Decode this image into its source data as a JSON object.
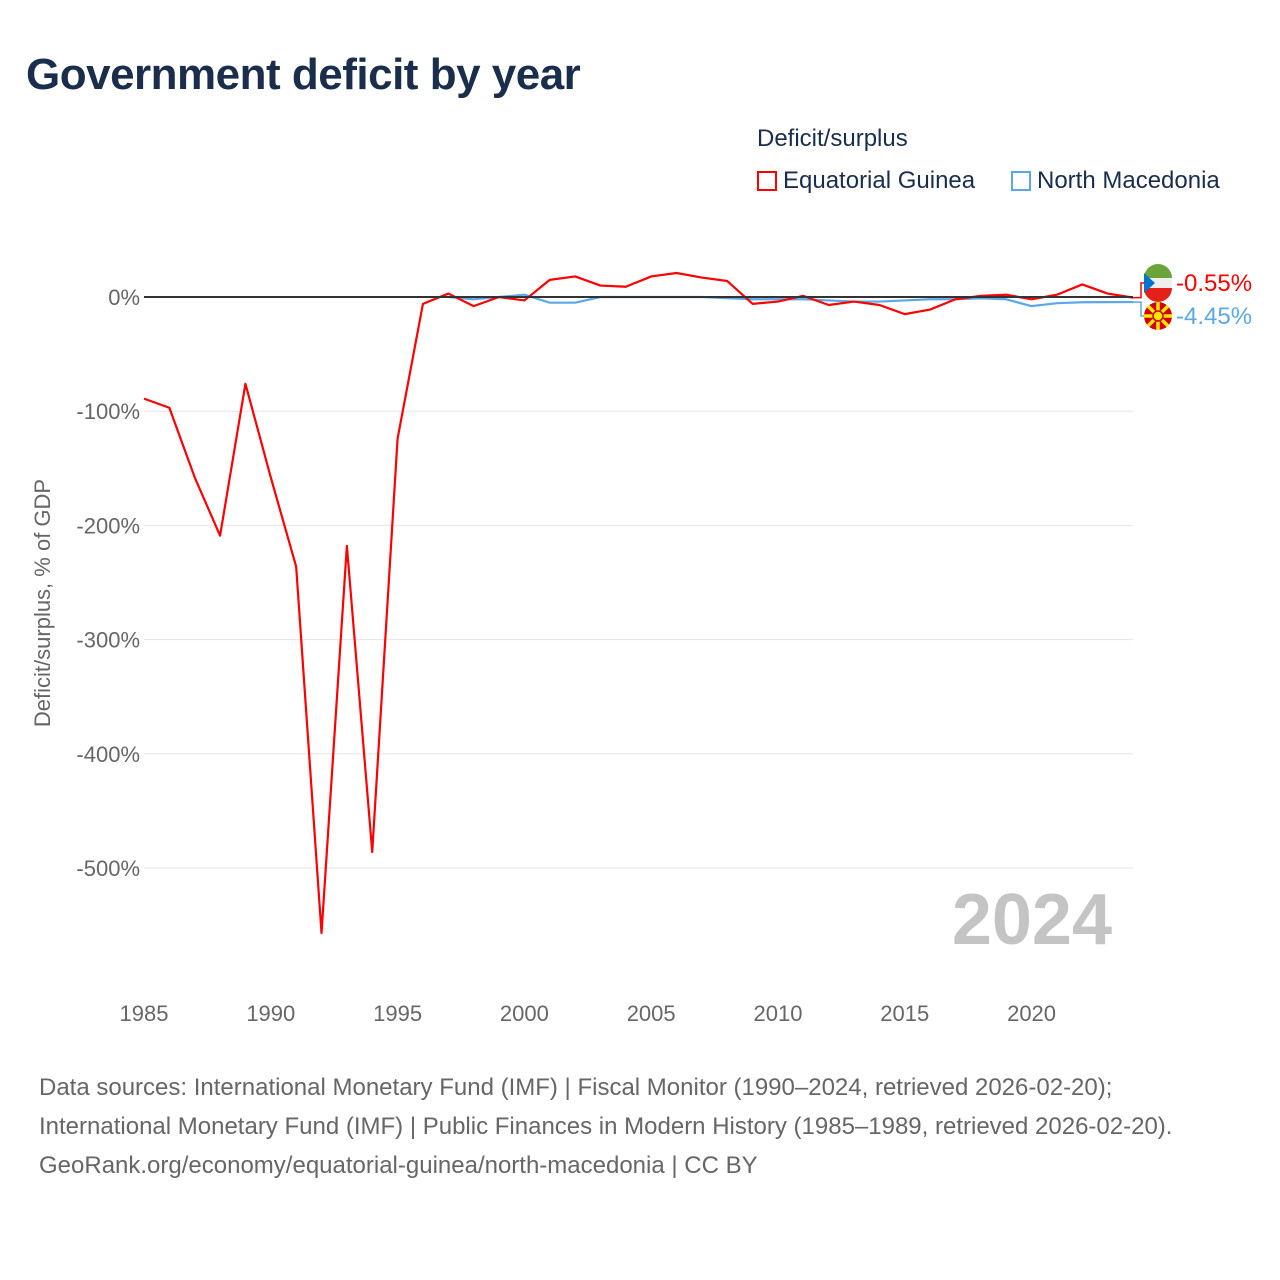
{
  "title": "Government deficit by year",
  "legend": {
    "title": "Deficit/surplus",
    "items": [
      {
        "label": "Equatorial Guinea",
        "color": "#ff0000"
      },
      {
        "label": "North Macedonia",
        "color": "#5aa8e8"
      }
    ]
  },
  "year_watermark": "2024",
  "sources": [
    "Data sources: International Monetary Fund (IMF) | Fiscal Monitor (1990–2024, retrieved 2026-02-20); International Monetary Fund (IMF) | Public Finances in Modern History (1985–1989, retrieved 2026-02-20).",
    "GeoRank.org/economy/equatorial-guinea/north-macedonia | CC BY"
  ],
  "chart_data": {
    "type": "line",
    "title": "Government deficit by year",
    "ylabel": "Deficit/surplus, % of GDP",
    "xlabel": "",
    "xlim": [
      1985,
      2024
    ],
    "ylim": [
      -600,
      40
    ],
    "x_ticks": [
      "1985",
      "1990",
      "1995",
      "2000",
      "2005",
      "2010",
      "2015",
      "2020"
    ],
    "y_ticks": [
      {
        "v": 0,
        "label": "0%"
      },
      {
        "v": -100,
        "label": "-100%"
      },
      {
        "v": -200,
        "label": "-200%"
      },
      {
        "v": -300,
        "label": "-300%"
      },
      {
        "v": -400,
        "label": "-400%"
      },
      {
        "v": -500,
        "label": "-500%"
      }
    ],
    "series": [
      {
        "name": "Equatorial Guinea",
        "color": "#ff0000",
        "end_label": "-0.55%",
        "x": [
          1985,
          1986,
          1987,
          1988,
          1989,
          1990,
          1991,
          1992,
          1993,
          1994,
          1995,
          1996,
          1997,
          1998,
          1999,
          2000,
          2001,
          2002,
          2003,
          2004,
          2005,
          2006,
          2007,
          2008,
          2009,
          2010,
          2011,
          2012,
          2013,
          2014,
          2015,
          2016,
          2017,
          2018,
          2019,
          2020,
          2021,
          2022,
          2023,
          2024
        ],
        "values": [
          -89,
          -97,
          -158,
          -209,
          -76,
          -158,
          -236,
          -557,
          -218,
          -486,
          -124,
          -6,
          3,
          -8,
          0,
          -3,
          15,
          18,
          10,
          9,
          18,
          21,
          17,
          14,
          -6,
          -4,
          1,
          -7,
          -4,
          -7,
          -15,
          -11,
          -2,
          1,
          2,
          -2,
          2,
          11,
          3,
          -0.55
        ]
      },
      {
        "name": "North Macedonia",
        "color": "#5aa8e8",
        "end_label": "-4.45%",
        "x": [
          1997,
          1998,
          1999,
          2000,
          2001,
          2002,
          2003,
          2004,
          2005,
          2006,
          2007,
          2008,
          2009,
          2010,
          2011,
          2012,
          2013,
          2014,
          2015,
          2016,
          2017,
          2018,
          2019,
          2020,
          2021,
          2022,
          2023,
          2024
        ],
        "values": [
          0,
          -2,
          0,
          2,
          -5,
          -5,
          0,
          0,
          0,
          0,
          0,
          -1,
          -2,
          -2,
          -2,
          -3,
          -4,
          -4,
          -3,
          -2,
          -2,
          -1.1,
          -2,
          -8,
          -5.4,
          -4.6,
          -4.5,
          -4.45
        ]
      }
    ]
  }
}
